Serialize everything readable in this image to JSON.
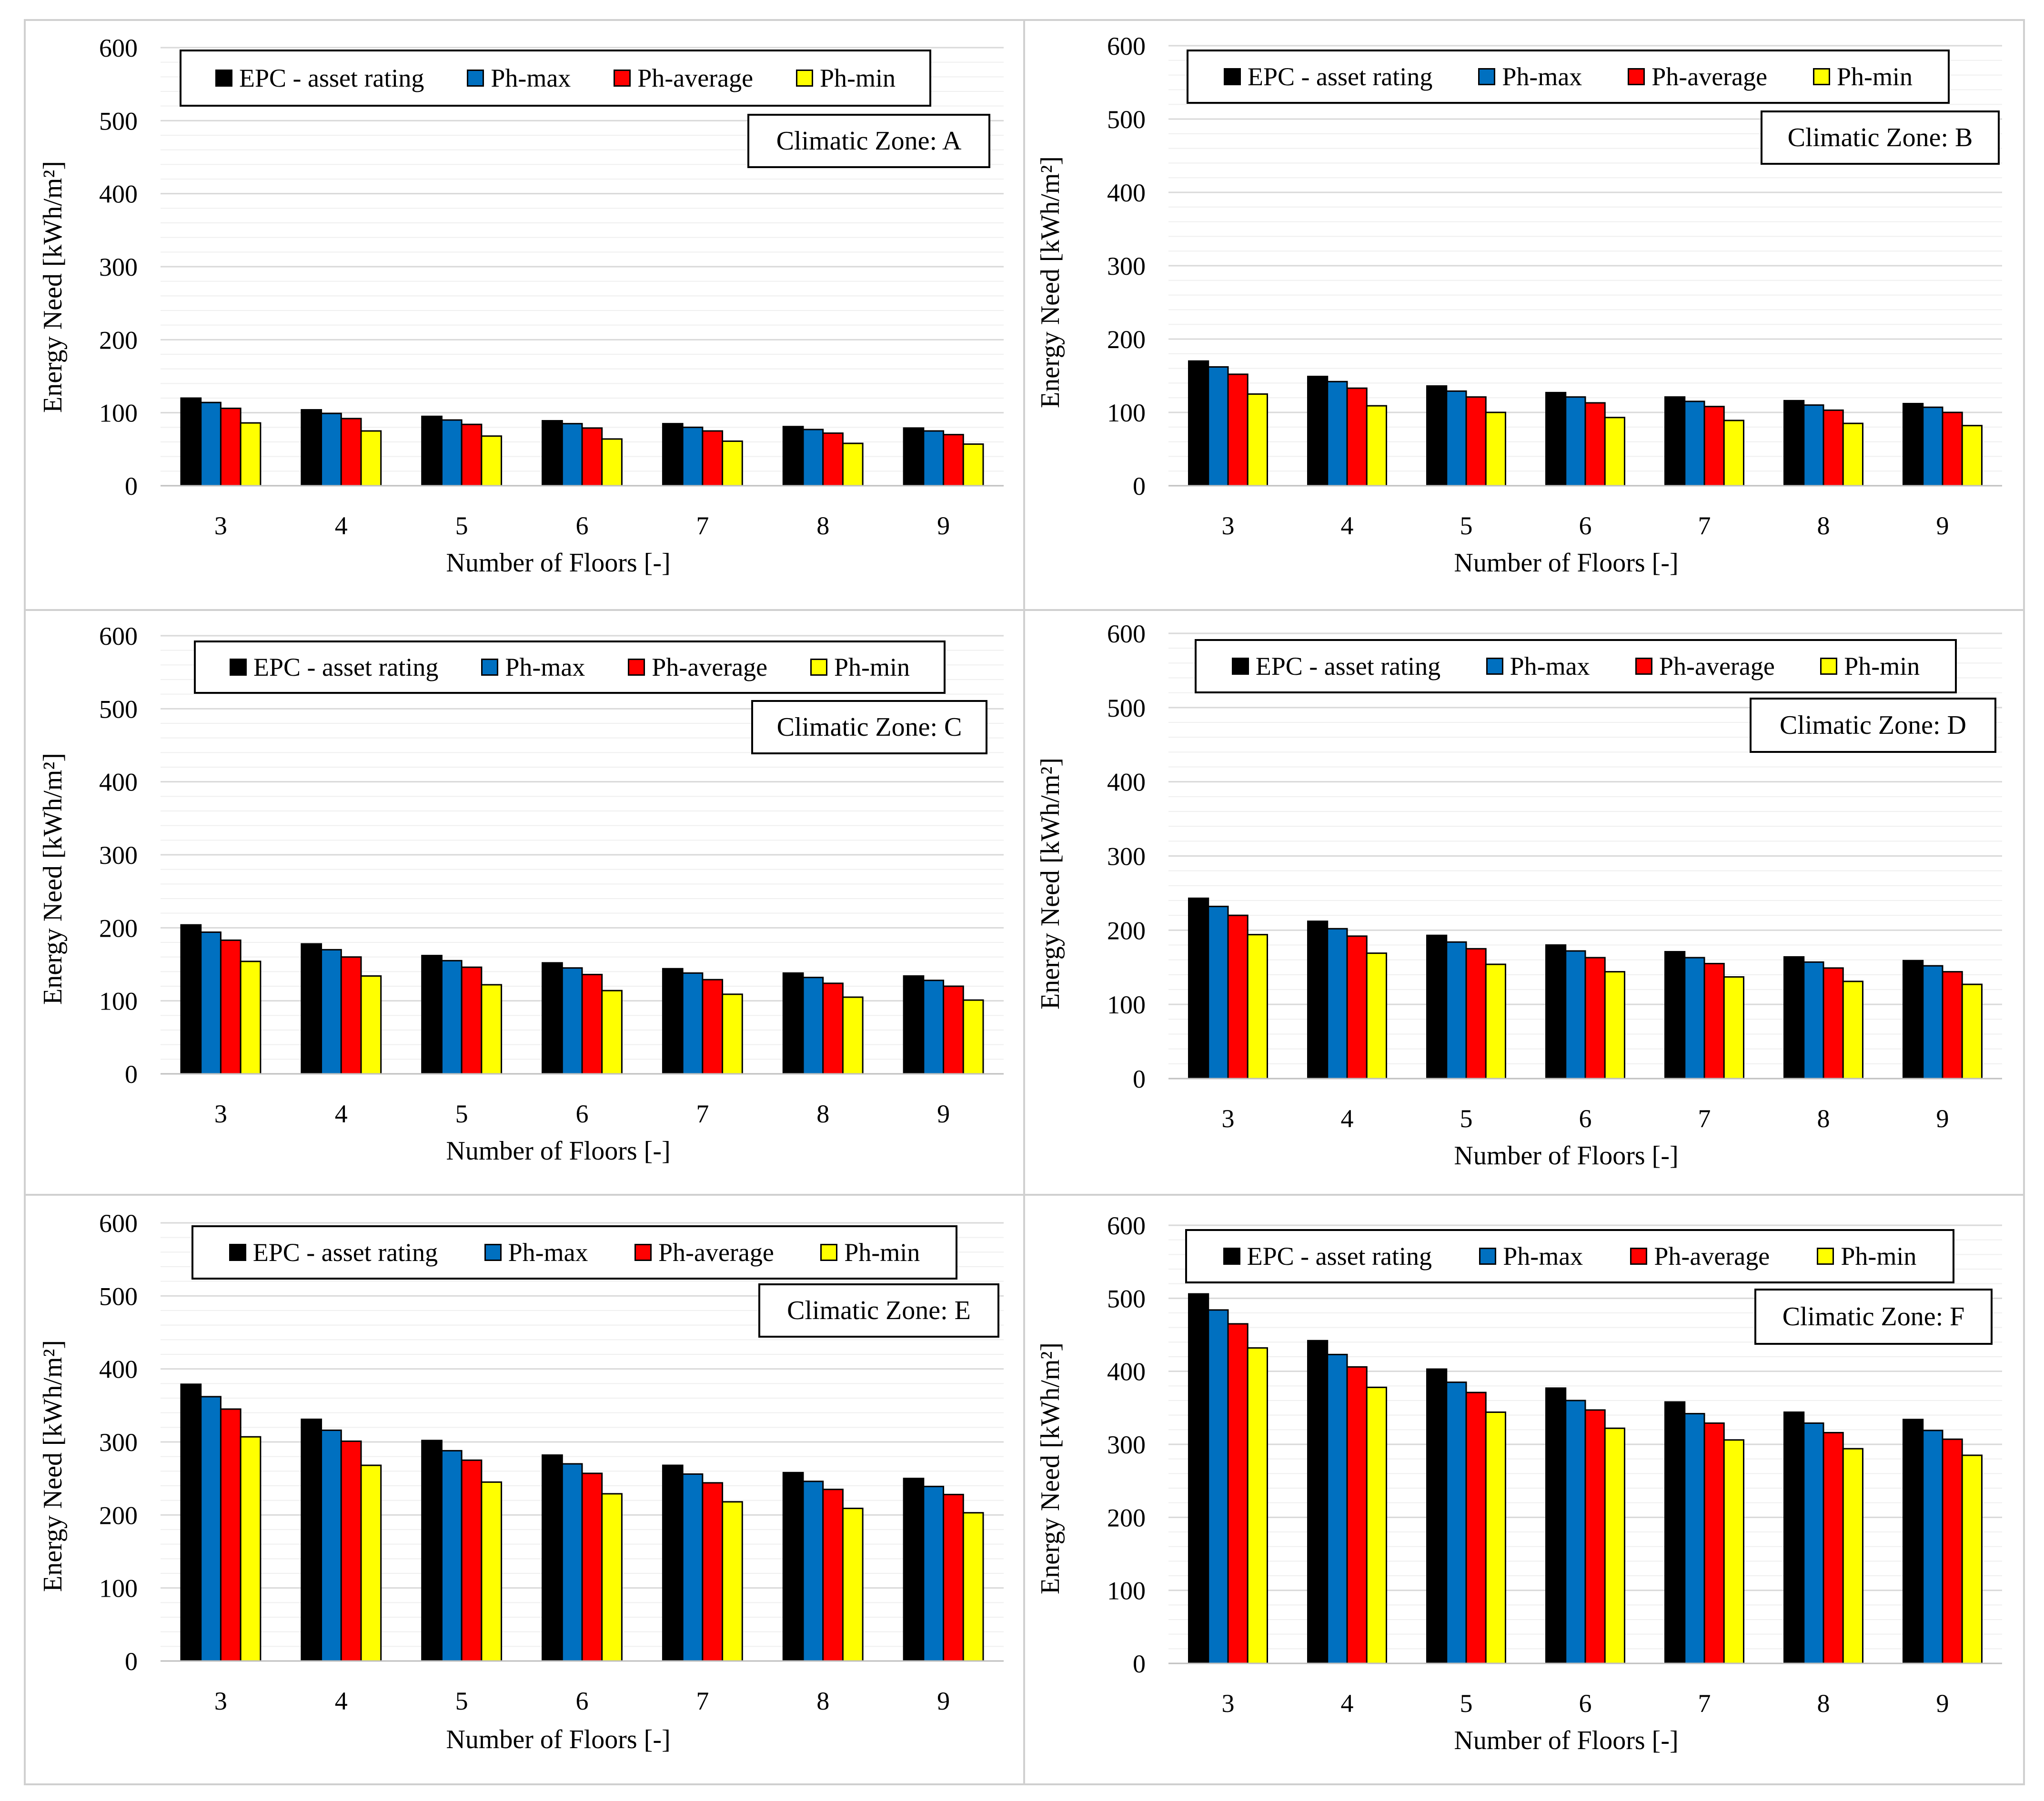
{
  "figure_title": "",
  "colors": {
    "epc": "#000000",
    "ph_max": "#0070C0",
    "ph_average": "#FF0000",
    "ph_min": "#FFFF00",
    "grid_major": "#d9d9d9",
    "grid_minor": "#efefef",
    "panel_border": "#d0d0d0"
  },
  "legend": {
    "epc_label": "EPC - asset rating",
    "ph_max_label": "Ph-max",
    "ph_average_label": "Ph-average",
    "ph_min_label": "Ph-min"
  },
  "chart_data": [
    {
      "type": "bar",
      "title": "",
      "zone_label": "Climatic Zone: A",
      "xlabel": "Number of Floors [-]",
      "ylabel": "Energy Need [kWh/m²]",
      "ylim": [
        0,
        600
      ],
      "yticks": [
        "0",
        "100",
        "200",
        "300",
        "400",
        "500",
        "600"
      ],
      "categories": [
        "3",
        "4",
        "5",
        "6",
        "7",
        "8",
        "9"
      ],
      "legend_position": "top",
      "series": [
        {
          "name": "EPC - asset rating",
          "values": [
            120,
            104,
            95,
            89,
            85,
            81,
            79
          ]
        },
        {
          "name": "Ph-max",
          "values": [
            114,
            99,
            90,
            85,
            80,
            77,
            75
          ]
        },
        {
          "name": "Ph-average",
          "values": [
            106,
            92,
            84,
            79,
            75,
            72,
            70
          ]
        },
        {
          "name": "Ph-min",
          "values": [
            86,
            75,
            68,
            64,
            61,
            58,
            57
          ]
        }
      ]
    },
    {
      "type": "bar",
      "title": "",
      "zone_label": "Climatic Zone: B",
      "xlabel": "Number of Floors [-]",
      "ylabel": "Energy Need [kWh/m²]",
      "ylim": [
        0,
        600
      ],
      "yticks": [
        "0",
        "100",
        "200",
        "300",
        "400",
        "500",
        "600"
      ],
      "categories": [
        "3",
        "4",
        "5",
        "6",
        "7",
        "8",
        "9"
      ],
      "legend_position": "top",
      "series": [
        {
          "name": "EPC - asset rating",
          "values": [
            170,
            149,
            136,
            127,
            121,
            116,
            112
          ]
        },
        {
          "name": "Ph-max",
          "values": [
            162,
            142,
            129,
            121,
            115,
            110,
            107
          ]
        },
        {
          "name": "Ph-average",
          "values": [
            152,
            133,
            121,
            113,
            108,
            103,
            100
          ]
        },
        {
          "name": "Ph-min",
          "values": [
            125,
            109,
            100,
            93,
            89,
            85,
            82
          ]
        }
      ]
    },
    {
      "type": "bar",
      "title": "",
      "zone_label": "Climatic Zone: C",
      "xlabel": "Number of Floors [-]",
      "ylabel": "Energy Need [kWh/m²]",
      "ylim": [
        0,
        600
      ],
      "yticks": [
        "0",
        "100",
        "200",
        "300",
        "400",
        "500",
        "600"
      ],
      "categories": [
        "3",
        "4",
        "5",
        "6",
        "7",
        "8",
        "9"
      ],
      "legend_position": "top",
      "series": [
        {
          "name": "EPC - asset rating",
          "values": [
            204,
            178,
            162,
            152,
            144,
            138,
            134
          ]
        },
        {
          "name": "Ph-max",
          "values": [
            194,
            170,
            155,
            145,
            138,
            132,
            128
          ]
        },
        {
          "name": "Ph-average",
          "values": [
            183,
            160,
            146,
            136,
            129,
            124,
            120
          ]
        },
        {
          "name": "Ph-min",
          "values": [
            154,
            134,
            122,
            114,
            109,
            105,
            101
          ]
        }
      ]
    },
    {
      "type": "bar",
      "title": "",
      "zone_label": "Climatic Zone: D",
      "xlabel": "Number of Floors [-]",
      "ylabel": "Energy Need [kWh/m²]",
      "ylim": [
        0,
        600
      ],
      "yticks": [
        "0",
        "100",
        "200",
        "300",
        "400",
        "500",
        "600"
      ],
      "categories": [
        "3",
        "4",
        "5",
        "6",
        "7",
        "8",
        "9"
      ],
      "legend_position": "top",
      "series": [
        {
          "name": "EPC - asset rating",
          "values": [
            243,
            212,
            193,
            180,
            171,
            164,
            159
          ]
        },
        {
          "name": "Ph-max",
          "values": [
            232,
            202,
            184,
            172,
            163,
            157,
            152
          ]
        },
        {
          "name": "Ph-average",
          "values": [
            220,
            192,
            175,
            163,
            155,
            149,
            144
          ]
        },
        {
          "name": "Ph-min",
          "values": [
            194,
            169,
            154,
            144,
            137,
            131,
            127
          ]
        }
      ]
    },
    {
      "type": "bar",
      "title": "",
      "zone_label": "Climatic Zone: E",
      "xlabel": "Number of Floors [-]",
      "ylabel": "Energy Need [kWh/m²]",
      "ylim": [
        0,
        600
      ],
      "yticks": [
        "0",
        "100",
        "200",
        "300",
        "400",
        "500",
        "600"
      ],
      "categories": [
        "3",
        "4",
        "5",
        "6",
        "7",
        "8",
        "9"
      ],
      "legend_position": "top",
      "series": [
        {
          "name": "EPC - asset rating",
          "values": [
            379,
            331,
            302,
            282,
            268,
            258,
            250
          ]
        },
        {
          "name": "Ph-max",
          "values": [
            362,
            316,
            288,
            270,
            256,
            246,
            239
          ]
        },
        {
          "name": "Ph-average",
          "values": [
            345,
            301,
            275,
            257,
            244,
            235,
            228
          ]
        },
        {
          "name": "Ph-min",
          "values": [
            307,
            268,
            245,
            229,
            218,
            209,
            203
          ]
        }
      ]
    },
    {
      "type": "bar",
      "title": "",
      "zone_label": "Climatic Zone: F",
      "xlabel": "Number of Floors [-]",
      "ylabel": "Energy Need [kWh/m²]",
      "ylim": [
        0,
        600
      ],
      "yticks": [
        "0",
        "100",
        "200",
        "300",
        "400",
        "500",
        "600"
      ],
      "categories": [
        "3",
        "4",
        "5",
        "6",
        "7",
        "8",
        "9"
      ],
      "legend_position": "top",
      "series": [
        {
          "name": "EPC - asset rating",
          "values": [
            506,
            442,
            403,
            377,
            358,
            344,
            334
          ]
        },
        {
          "name": "Ph-max",
          "values": [
            484,
            423,
            385,
            360,
            342,
            329,
            319
          ]
        },
        {
          "name": "Ph-average",
          "values": [
            465,
            406,
            371,
            347,
            329,
            316,
            307
          ]
        },
        {
          "name": "Ph-min",
          "values": [
            432,
            378,
            344,
            322,
            306,
            294,
            285
          ]
        }
      ]
    }
  ]
}
